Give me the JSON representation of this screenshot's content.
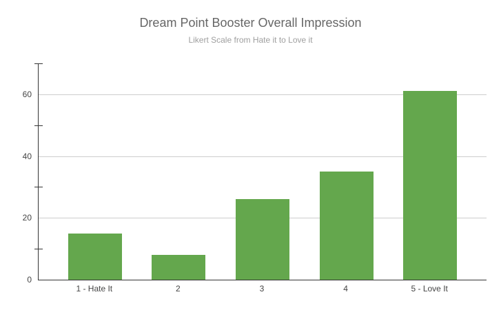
{
  "chart_data": {
    "type": "bar",
    "title": "Dream Point Booster Overall Impression",
    "subtitle": "Likert Scale from Hate it to Love it",
    "categories": [
      "1 - Hate It",
      "2",
      "3",
      "4",
      "5 - Love It"
    ],
    "values": [
      15,
      8,
      26,
      35,
      61
    ],
    "xlabel": "",
    "ylabel": "",
    "ylim": [
      0,
      70
    ],
    "yticks": [
      0,
      20,
      40,
      60
    ],
    "minor_yticks": [
      10,
      30,
      50,
      70
    ],
    "grid": true,
    "legend_position": "none",
    "colors": {
      "bar": "#64a74d",
      "gridline": "#cccccc",
      "axis": "#333333",
      "title": "#666666",
      "subtitle": "#9e9e9e",
      "tick_label": "#444444",
      "background": "#ffffff"
    }
  }
}
